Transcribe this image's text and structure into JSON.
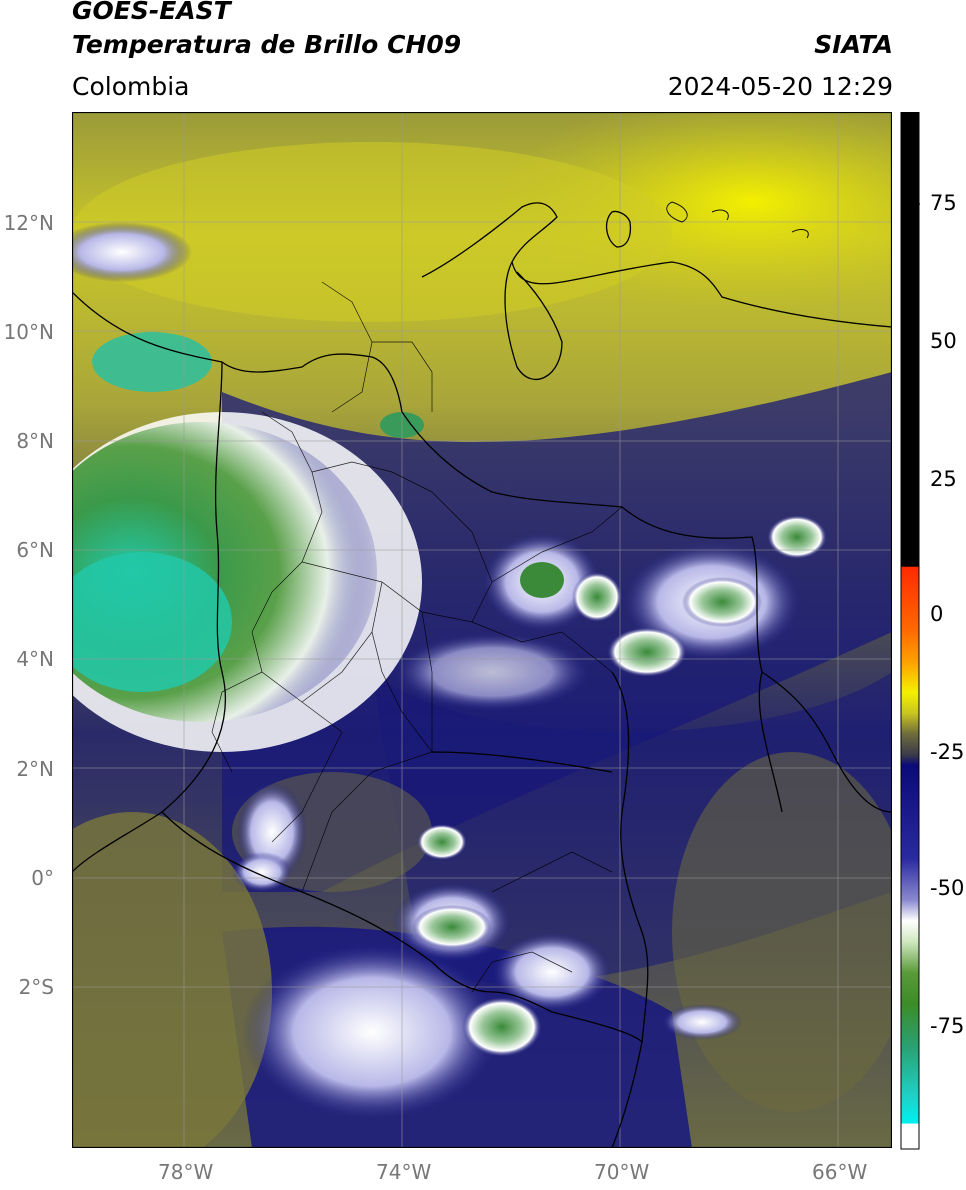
{
  "header": {
    "satellite": "GOES-EAST",
    "product": "Temperatura de Brillo CH09",
    "region": "Colombia",
    "source": "SIATA",
    "datetime": "2024-05-20 12:29"
  },
  "axes": {
    "lat_labels": [
      "12°N",
      "10°N",
      "8°N",
      "6°N",
      "4°N",
      "2°N",
      "0°",
      "2°S"
    ],
    "lon_labels": [
      "78°W",
      "74°W",
      "70°W",
      "66°W"
    ]
  },
  "colorbar": {
    "ticks": [
      "75",
      "50",
      "25",
      "0",
      "-25",
      "-50",
      "-75"
    ],
    "colors": {
      "black": "#000000",
      "red": "#ff2a00",
      "orange": "#ff8c00",
      "yellow": "#f3f000",
      "olive": "#6f6b3a",
      "navy": "#0a0a78",
      "white": "#ffffff",
      "green": "#3c8c28",
      "cyan": "#1ed2c8"
    }
  },
  "colors": {
    "ocean_yellow": "#d8d418",
    "olive": "#7a7a3c",
    "navy": "#1a1a7a",
    "cloud_white": "#ffffff",
    "cloud_green": "#4c9a3c",
    "cloud_cyan": "#2cc8a8",
    "border": "#000000",
    "grid": "#9a9a9a"
  }
}
